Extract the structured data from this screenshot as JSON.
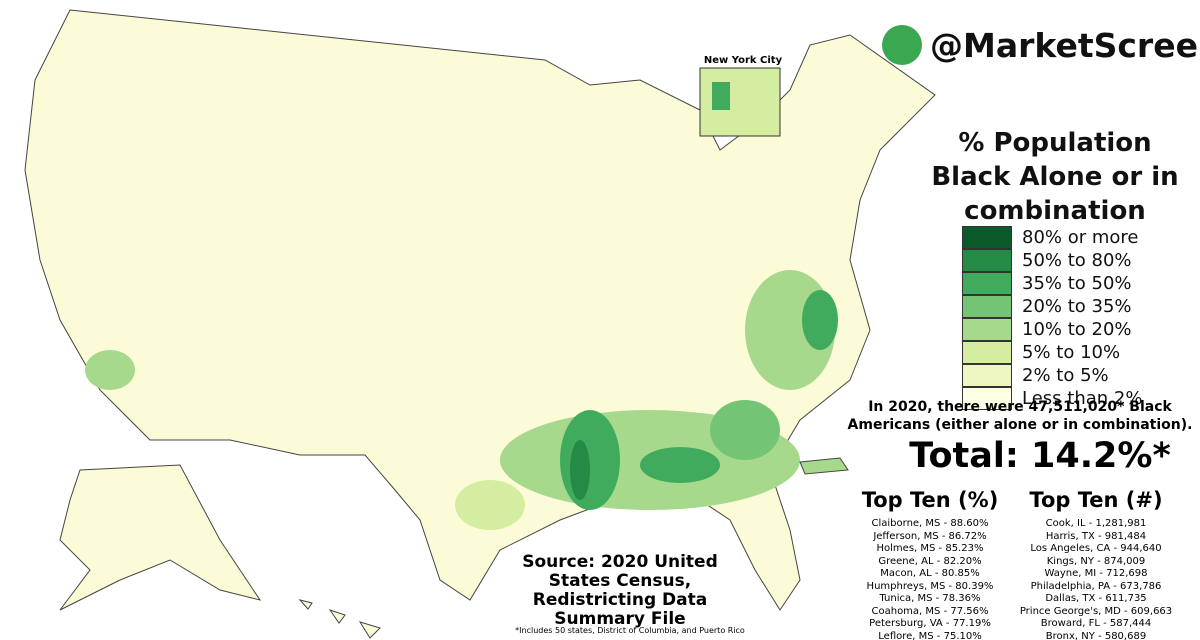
{
  "brand": "@MarketScreen",
  "inset_label": "New York City",
  "title": "% Population Black Alone or in combination",
  "legend": [
    {
      "label": "80% or more",
      "color": "#0b5a2b"
    },
    {
      "label": "50% to 80%",
      "color": "#238b45"
    },
    {
      "label": "35% to 50%",
      "color": "#41ab5d"
    },
    {
      "label": "20% to 35%",
      "color": "#74c476"
    },
    {
      "label": "10% to 20%",
      "color": "#a6d98b"
    },
    {
      "label": "5% to 10%",
      "color": "#d4eda0"
    },
    {
      "label": "2% to 5%",
      "color": "#eef7c2"
    },
    {
      "label": "Less than 2%",
      "color": "#ffffe3"
    }
  ],
  "summary": "In 2020, there were 47,511,020* Black Americans (either alone or in combination).",
  "total": "Total: 14.2%*",
  "top_pct": {
    "title": "Top Ten (%)",
    "items": [
      "Claiborne, MS - 88.60%",
      "Jefferson, MS - 86.72%",
      "Holmes, MS - 85.23%",
      "Greene, AL - 82.20%",
      "Macon, AL - 80.85%",
      "Humphreys, MS - 80.39%",
      "Tunica, MS - 78.36%",
      "Coahoma, MS - 77.56%",
      "Petersburg, VA - 77.19%",
      "Leflore, MS - 75.10%"
    ]
  },
  "top_num": {
    "title": "Top Ten (#)",
    "items": [
      "Cook, IL - 1,281,981",
      "Harris, TX - 981,484",
      "Los Angeles, CA - 944,640",
      "Kings, NY - 874,009",
      "Wayne, MI - 712,698",
      "Philadelphia, PA - 673,786",
      "Dallas, TX - 611,735",
      "Prince George's, MD - 609,663",
      "Broward, FL - 587,444",
      "Bronx, NY - 580,689"
    ]
  },
  "source": "Source: 2020 United States Census, Redistricting Data Summary File",
  "footnote": "*Includes 50 states, District of Columbia, and Puerto Rico"
}
